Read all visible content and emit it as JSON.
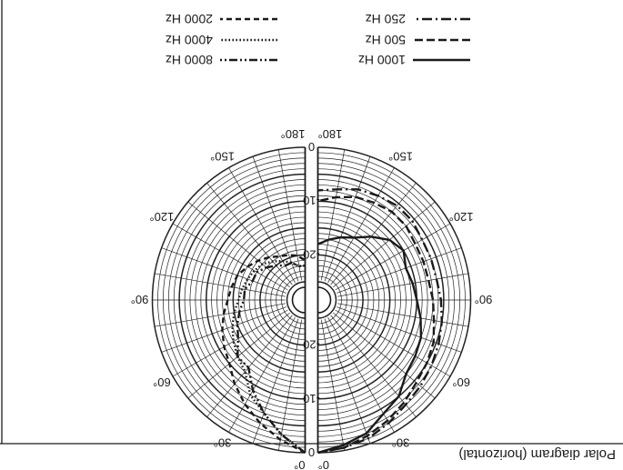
{
  "figure": {
    "title": "Polar diagram (horizontal)",
    "orientation": "rotated-180",
    "angle_labels": [
      "0°",
      "30°",
      "60°",
      "90°",
      "120°",
      "150°",
      "180°"
    ],
    "radial_labels": [
      "0",
      "-10",
      "-20"
    ],
    "colors": {
      "ink": "#1a1a1a",
      "paper": "#ffffff",
      "grid": "#222222"
    }
  },
  "legend": {
    "left_column": [
      {
        "label": "1000 Hz",
        "style": "solid"
      },
      {
        "label": "500 Hz",
        "style": "dashed"
      },
      {
        "label": "250 Hz",
        "style": "dash-dot"
      }
    ],
    "right_column": [
      {
        "label": "8000 Hz",
        "style": "dash-dot-dot"
      },
      {
        "label": "4000 Hz",
        "style": "dotted"
      },
      {
        "label": "2000 Hz",
        "style": "dashed-short"
      }
    ]
  },
  "chart_data": {
    "type": "polar",
    "angle_unit": "degrees",
    "radial_unit": "dB",
    "rlim": [
      -25,
      0
    ],
    "angles": [
      0,
      10,
      20,
      30,
      40,
      50,
      60,
      70,
      80,
      90,
      100,
      110,
      120,
      130,
      140,
      150,
      160,
      170,
      180
    ],
    "panels": [
      {
        "side": "left",
        "series": [
          {
            "name": "1000 Hz",
            "style": "solid",
            "values": [
              0,
              -1,
              -2,
              -4,
              -5,
              -7,
              -7.5,
              -8,
              -9,
              -10,
              -10.5,
              -11,
              -10,
              -11,
              -13,
              -15,
              -16,
              -17,
              -18
            ]
          },
          {
            "name": "500 Hz",
            "style": "dashed",
            "values": [
              0,
              -0.5,
              -1.5,
              -2.5,
              -3.5,
              -4.5,
              -5,
              -5.5,
              -6.5,
              -7,
              -7.5,
              -7.5,
              -7.5,
              -7,
              -7,
              -7.5,
              -8,
              -9,
              -10
            ]
          },
          {
            "name": "250 Hz",
            "style": "dash-dot",
            "values": [
              0,
              -0.5,
              -1,
              -2,
              -3,
              -3.5,
              -4,
              -4.5,
              -5,
              -5.5,
              -6,
              -6,
              -6,
              -5.5,
              -5.5,
              -6,
              -6.5,
              -7.5,
              -8
            ]
          }
        ]
      },
      {
        "side": "right",
        "series": [
          {
            "name": "2000 Hz",
            "style": "dashed-short",
            "values": [
              0,
              -2,
              -4,
              -6,
              -8,
              -10,
              -11,
              -12,
              -13,
              -14,
              -14.5,
              -15,
              -16,
              -17,
              -18,
              -19,
              -19.5,
              -20,
              -21
            ]
          },
          {
            "name": "4000 Hz",
            "style": "dotted",
            "values": [
              0,
              -3,
              -6,
              -8,
              -11,
              -12,
              -13,
              -14,
              -15,
              -16,
              -16.5,
              -17,
              -17.5,
              -18,
              -19,
              -20,
              -21,
              -22,
              -22
            ]
          },
          {
            "name": "8000 Hz",
            "style": "dash-dot-dot",
            "values": [
              0,
              -3,
              -6,
              -9,
              -12,
              -12,
              -14,
              -15,
              -16,
              -17,
              -17,
              -18,
              -18,
              -19,
              -20,
              -21,
              -21,
              -22,
              -22
            ]
          }
        ]
      }
    ]
  }
}
